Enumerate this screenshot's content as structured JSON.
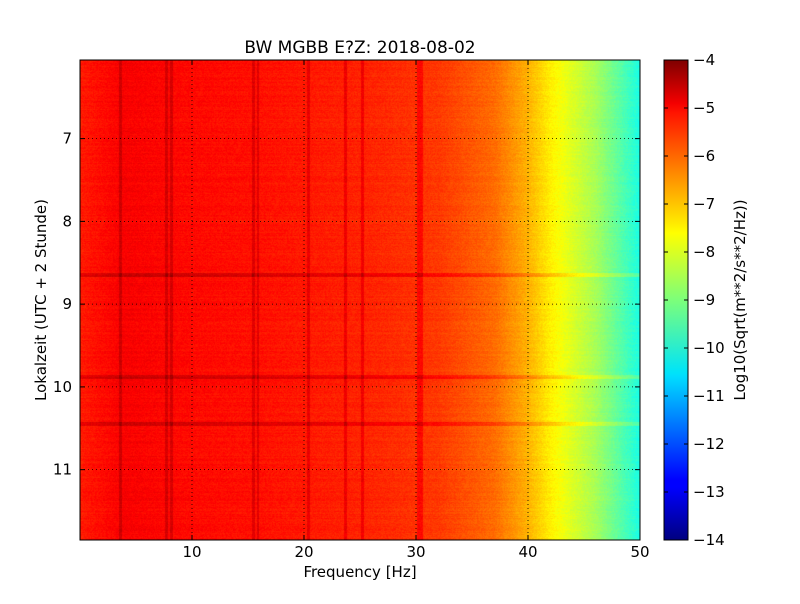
{
  "chart_data": {
    "type": "heatmap",
    "title": "BW MGBB E?Z: 2018-08-02",
    "xlabel": "Frequency [Hz]",
    "ylabel": "Lokalzeit (UTC + 2 Stunde)",
    "xlim": [
      0,
      50
    ],
    "ylim": [
      6.05,
      11.85
    ],
    "y_inverted": true,
    "x_ticks": [
      10,
      20,
      30,
      40,
      50
    ],
    "x_tick_labels": [
      "10",
      "20",
      "30",
      "40",
      "50"
    ],
    "y_ticks": [
      7,
      8,
      9,
      10,
      11
    ],
    "y_tick_labels": [
      "7",
      "8",
      "9",
      "10",
      "11"
    ],
    "grid": true,
    "colorbar": {
      "label": "Log10(Sqrt(m**2/s**2/Hz))",
      "range": [
        -14,
        -4
      ],
      "colormap": "jet",
      "ticks": [
        -4,
        -5,
        -6,
        -7,
        -8,
        -9,
        -10,
        -11,
        -12,
        -13,
        -14
      ],
      "tick_labels": [
        "−4",
        "−5",
        "−6",
        "−7",
        "−8",
        "−9",
        "−10",
        "−11",
        "−12",
        "−13",
        "−14"
      ]
    },
    "frequency_profile": {
      "frequencies_hz": [
        0,
        4,
        8,
        16,
        26,
        32,
        37,
        40,
        42,
        44,
        46,
        48,
        50
      ],
      "log10_amplitude": [
        -5.5,
        -5.2,
        -5.3,
        -5.4,
        -5.6,
        -5.8,
        -6.3,
        -7.0,
        -7.6,
        -8.1,
        -8.6,
        -9.3,
        -10.0
      ]
    },
    "line_features_hz": [
      3.6,
      7.7,
      8.2,
      15.5,
      15.9,
      20.4,
      23.7,
      25.2,
      30.2,
      30.5
    ],
    "band_features_local_time": [
      8.65,
      9.88,
      10.45
    ]
  }
}
